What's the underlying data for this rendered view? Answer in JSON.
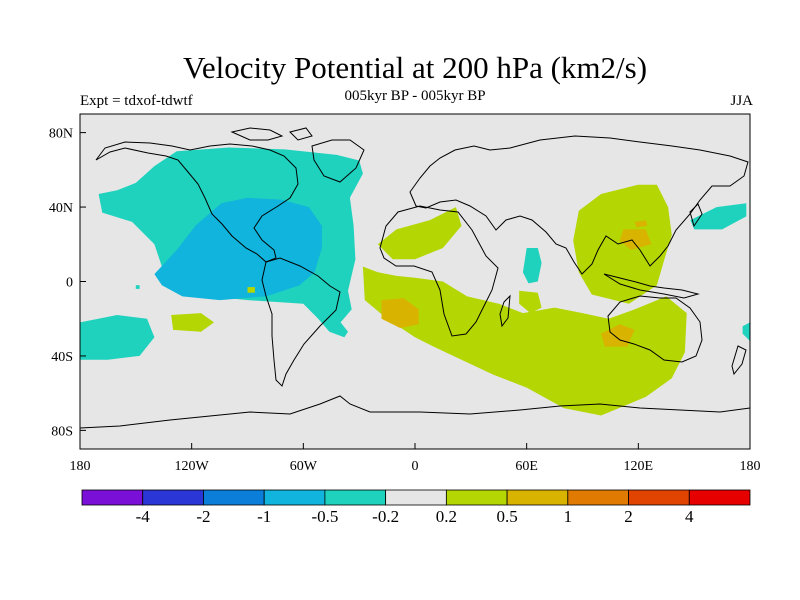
{
  "header": {
    "title": "Velocity Potential at 200 hPa (km2/s)",
    "subtitle": "005kyr BP - 005kyr BP",
    "left_label": "Expt = tdxof-tdwtf",
    "right_label": "JJA"
  },
  "chart_data": {
    "type": "heatmap",
    "title": "Velocity Potential at 200 hPa (km2/s)",
    "subtitle": "005kyr BP - 005kyr BP",
    "experiment": "Expt = tdxof-tdwtf",
    "season": "JJA",
    "projection": "cylindrical-equidistant",
    "grid": false,
    "xlim": [
      -180,
      180
    ],
    "ylim": [
      -90,
      90
    ],
    "x_ticks": [
      {
        "value": -180,
        "label": "180"
      },
      {
        "value": -120,
        "label": "120W"
      },
      {
        "value": -60,
        "label": "60W"
      },
      {
        "value": 0,
        "label": "0"
      },
      {
        "value": 60,
        "label": "60E"
      },
      {
        "value": 120,
        "label": "120E"
      },
      {
        "value": 180,
        "label": "180"
      }
    ],
    "y_ticks": [
      {
        "value": 80,
        "label": "80N"
      },
      {
        "value": 40,
        "label": "40N"
      },
      {
        "value": 0,
        "label": "0"
      },
      {
        "value": -40,
        "label": "40S"
      },
      {
        "value": -80,
        "label": "80S"
      }
    ],
    "colorbar": {
      "levels": [
        "-4",
        "-2",
        "-1",
        "-0.5",
        "-0.2",
        "0.2",
        "0.5",
        "1",
        "2",
        "4"
      ],
      "colors": [
        "#7a10d8",
        "#2a36d6",
        "#0a7ed8",
        "#10b4dc",
        "#1ed2be",
        "#e6e6e6",
        "#b4d602",
        "#d8b400",
        "#e07a00",
        "#e04400",
        "#e60000"
      ]
    },
    "regions": [
      {
        "name": "north-pacific-america-negative",
        "level": "-0.5 to -0.2",
        "color_index": 4,
        "outline": [
          [
            -170,
            47
          ],
          [
            -160,
            49
          ],
          [
            -150,
            53
          ],
          [
            -140,
            62
          ],
          [
            -128,
            70
          ],
          [
            -100,
            72
          ],
          [
            -70,
            71
          ],
          [
            -42,
            68
          ],
          [
            -30,
            65
          ],
          [
            -28,
            58
          ],
          [
            -35,
            45
          ],
          [
            -33,
            30
          ],
          [
            -32,
            12
          ],
          [
            -36,
            -5
          ],
          [
            -34,
            -15
          ],
          [
            -40,
            -22
          ],
          [
            -36,
            -27
          ],
          [
            -38,
            -30
          ],
          [
            -46,
            -27
          ],
          [
            -52,
            -20
          ],
          [
            -60,
            -12
          ],
          [
            -90,
            -10
          ],
          [
            -110,
            -8
          ],
          [
            -128,
            -5
          ],
          [
            -135,
            5
          ],
          [
            -140,
            20
          ],
          [
            -152,
            32
          ],
          [
            -168,
            37
          ]
        ]
      },
      {
        "name": "central-america-core",
        "level": "-1 to -0.5",
        "color_index": 3,
        "outline": [
          [
            -140,
            4
          ],
          [
            -128,
            17
          ],
          [
            -118,
            30
          ],
          [
            -104,
            42
          ],
          [
            -90,
            45
          ],
          [
            -72,
            44
          ],
          [
            -57,
            40
          ],
          [
            -50,
            30
          ],
          [
            -50,
            18
          ],
          [
            -54,
            5
          ],
          [
            -62,
            -2
          ],
          [
            -80,
            -8
          ],
          [
            -105,
            -10
          ],
          [
            -125,
            -8
          ],
          [
            -136,
            -2
          ]
        ]
      },
      {
        "name": "south-pacific-negative",
        "level": "-0.5 to -0.2",
        "color_index": 4,
        "outline": [
          [
            -180,
            -22
          ],
          [
            -160,
            -18
          ],
          [
            -144,
            -20
          ],
          [
            -140,
            -30
          ],
          [
            -148,
            -40
          ],
          [
            -165,
            -42
          ],
          [
            -180,
            -42
          ]
        ]
      },
      {
        "name": "east-pacific-small-negative",
        "level": "-0.5 to -0.2",
        "color_index": 4,
        "outline": [
          [
            -179,
            -26
          ],
          [
            -176,
            -23
          ],
          [
            -176,
            -30
          ],
          [
            -179,
            -32
          ]
        ]
      },
      {
        "name": "tropical-atlantic-small-positive",
        "level": "0.2 to 0.5",
        "color_index": 6,
        "outline": [
          [
            -131,
            -18
          ],
          [
            -115,
            -17
          ],
          [
            -108,
            -22
          ],
          [
            -115,
            -27
          ],
          [
            -130,
            -26
          ]
        ]
      },
      {
        "name": "pacific-small-negative",
        "level": "-0.5 to -0.2",
        "color_index": 4,
        "outline": [
          [
            -150,
            -2
          ],
          [
            -148,
            -2
          ],
          [
            -148,
            -4
          ],
          [
            -150,
            -4
          ]
        ]
      },
      {
        "name": "north-africa-positive",
        "level": "0.2 to 0.5",
        "color_index": 6,
        "outline": [
          [
            -20,
            20
          ],
          [
            -10,
            28
          ],
          [
            8,
            33
          ],
          [
            22,
            40
          ],
          [
            25,
            30
          ],
          [
            15,
            18
          ],
          [
            0,
            12
          ],
          [
            -12,
            12
          ]
        ]
      },
      {
        "name": "southern-ocean-positive",
        "level": "0.2 to 0.5",
        "color_index": 6,
        "outline": [
          [
            -28,
            8
          ],
          [
            -20,
            5
          ],
          [
            -10,
            3
          ],
          [
            0,
            2
          ],
          [
            15,
            0
          ],
          [
            28,
            -8
          ],
          [
            45,
            -12
          ],
          [
            58,
            -17
          ],
          [
            75,
            -14
          ],
          [
            90,
            -17
          ],
          [
            104,
            -20
          ],
          [
            118,
            -15
          ],
          [
            135,
            -8
          ],
          [
            146,
            -17
          ],
          [
            145,
            -38
          ],
          [
            138,
            -52
          ],
          [
            124,
            -62
          ],
          [
            100,
            -72
          ],
          [
            80,
            -68
          ],
          [
            60,
            -57
          ],
          [
            42,
            -50
          ],
          [
            25,
            -42
          ],
          [
            10,
            -35
          ],
          [
            0,
            -30
          ],
          [
            -15,
            -20
          ],
          [
            -27,
            -10
          ]
        ]
      },
      {
        "name": "southern-ocean-core",
        "level": "0.5 to 1",
        "color_index": 7,
        "outline": [
          [
            -18,
            -10
          ],
          [
            -6,
            -9
          ],
          [
            2,
            -15
          ],
          [
            2,
            -23
          ],
          [
            -8,
            -25
          ],
          [
            -18,
            -20
          ]
        ]
      },
      {
        "name": "australia-core",
        "level": "0.5 to 1",
        "color_index": 7,
        "outline": [
          [
            100,
            -28
          ],
          [
            110,
            -23
          ],
          [
            118,
            -26
          ],
          [
            114,
            -35
          ],
          [
            102,
            -35
          ]
        ]
      },
      {
        "name": "asia-positive",
        "level": "0.2 to 0.5",
        "color_index": 6,
        "outline": [
          [
            100,
            47
          ],
          [
            120,
            52
          ],
          [
            130,
            52
          ],
          [
            136,
            40
          ],
          [
            138,
            25
          ],
          [
            134,
            12
          ],
          [
            130,
            -2
          ],
          [
            115,
            -12
          ],
          [
            95,
            -7
          ],
          [
            88,
            5
          ],
          [
            85,
            22
          ],
          [
            88,
            38
          ]
        ]
      },
      {
        "name": "asia-core",
        "level": "0.5 to 1",
        "color_index": 7,
        "outline": [
          [
            112,
            28
          ],
          [
            124,
            28
          ],
          [
            127,
            20
          ],
          [
            116,
            17
          ],
          [
            110,
            22
          ]
        ]
      },
      {
        "name": "east-asia-core",
        "level": "0.5 to 1",
        "color_index": 7,
        "outline": [
          [
            118,
            32
          ],
          [
            124,
            33
          ],
          [
            125,
            30
          ],
          [
            119,
            29
          ]
        ]
      },
      {
        "name": "arabian-sea-negative",
        "level": "-0.5 to -0.2",
        "color_index": 4,
        "outline": [
          [
            60,
            18
          ],
          [
            66,
            18
          ],
          [
            68,
            10
          ],
          [
            66,
            0
          ],
          [
            61,
            -1
          ],
          [
            58,
            5
          ]
        ]
      },
      {
        "name": "madagascar-positive",
        "level": "0.2 to 0.5",
        "color_index": 6,
        "outline": [
          [
            56,
            -5
          ],
          [
            66,
            -6
          ],
          [
            68,
            -14
          ],
          [
            62,
            -17
          ],
          [
            56,
            -12
          ]
        ]
      },
      {
        "name": "north-pacific-east-negative",
        "level": "-0.5 to -0.2",
        "color_index": 4,
        "outline": [
          [
            148,
            33
          ],
          [
            162,
            40
          ],
          [
            178,
            42
          ],
          [
            178,
            35
          ],
          [
            165,
            28
          ],
          [
            150,
            28
          ]
        ]
      },
      {
        "name": "east-pacific-edge-negative",
        "level": "-0.5 to -0.2",
        "color_index": 4,
        "outline": [
          [
            176,
            -24
          ],
          [
            180,
            -22
          ],
          [
            180,
            -32
          ],
          [
            176,
            -28
          ]
        ]
      },
      {
        "name": "north-pacific-west-positive",
        "level": "0.2 to 0.5",
        "color_index": 6,
        "outline": [
          [
            -90,
            -3
          ],
          [
            -86,
            -3
          ],
          [
            -86,
            -6
          ],
          [
            -90,
            -6
          ]
        ]
      }
    ]
  }
}
